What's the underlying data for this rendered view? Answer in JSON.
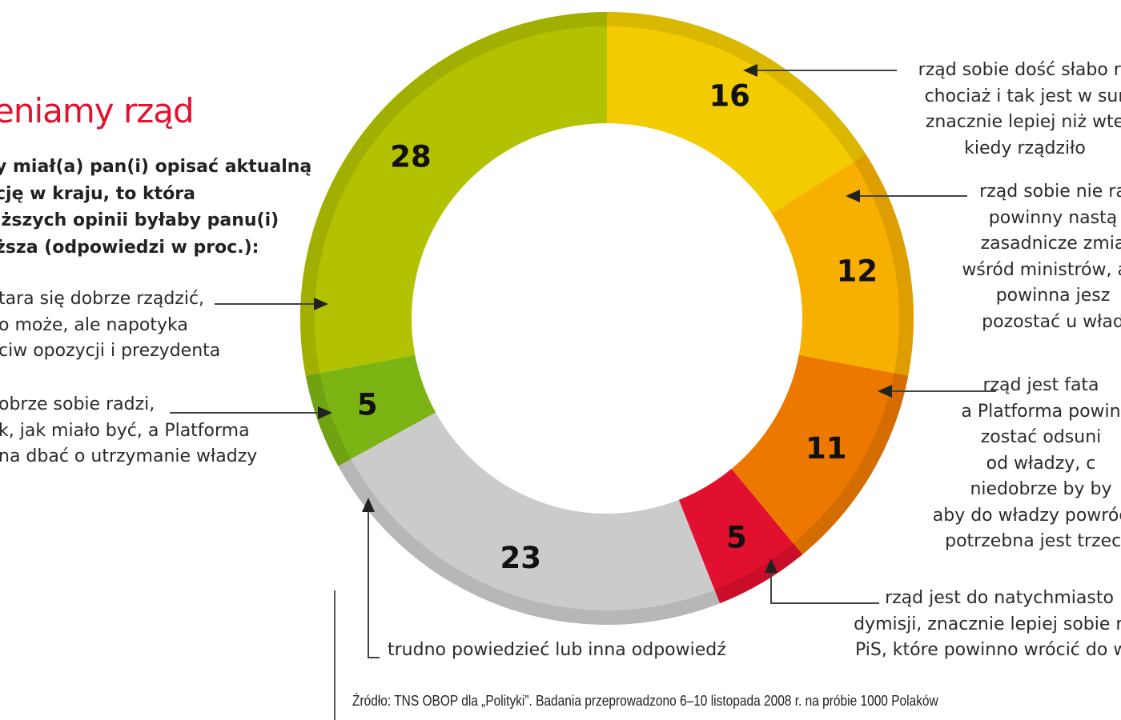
{
  "title": "eniamy rząd",
  "question": [
    "y miał(a) pan(i) opisać aktualną",
    "cję w kraju, to która",
    "iższych opinii byłaby panu(i)",
    "ższa (odpowiedzi w proc.):"
  ],
  "source": "Źródło: TNS OBOP dla „Polityki”. Badania przeprowadzono 6–10 listopada 2008 r. na próbie 1000 Polaków",
  "chart_data": {
    "type": "pie",
    "style": "donut",
    "slices": [
      {
        "value": 16,
        "label": "16",
        "color": "#f2cb00",
        "annotation": [
          "rząd sobie dość słabo ra",
          "chociaż i tak jest w sur",
          "znacznie lepiej niż wte",
          "kiedy rządziło"
        ]
      },
      {
        "value": 12,
        "label": "12",
        "color": "#f8b000",
        "annotation": [
          "rząd sobie nie ra",
          "powinny nastą",
          "zasadnicze zmia",
          "wśród ministrów, ale",
          "powinna jesz",
          "pozostać u wład"
        ]
      },
      {
        "value": 11,
        "label": "11",
        "color": "#ec7800",
        "annotation": [
          "rząd jest fata",
          "a Platforma powin",
          "zostać odsuni",
          "od władzy, c",
          "niedobrze by by",
          "aby do władzy powróciło",
          "potrzebna jest trzecia"
        ]
      },
      {
        "value": 5,
        "label": "5",
        "color": "#e0102e",
        "annotation": [
          "rząd jest do natychmiasto",
          "dymisji, znacznie lepiej sobie rad",
          "PiS, które powinno wrócić do wła"
        ]
      },
      {
        "value": 23,
        "label": "23",
        "color": "#cbcbcb",
        "annotation": [
          "trudno powiedzieć lub inna odpowiedź"
        ]
      },
      {
        "value": 5,
        "label": "5",
        "color": "#7cb414",
        "annotation": [
          "obrze sobie radzi,",
          "k, jak miało być, a Platforma",
          "na dbać o utrzymanie władzy"
        ]
      },
      {
        "value": 28,
        "label": "28",
        "color": "#b3c200",
        "annotation": [
          "tara się dobrze rządzić,",
          "o może, ale napotyka",
          "ciw opozycji i prezydenta"
        ]
      }
    ]
  }
}
